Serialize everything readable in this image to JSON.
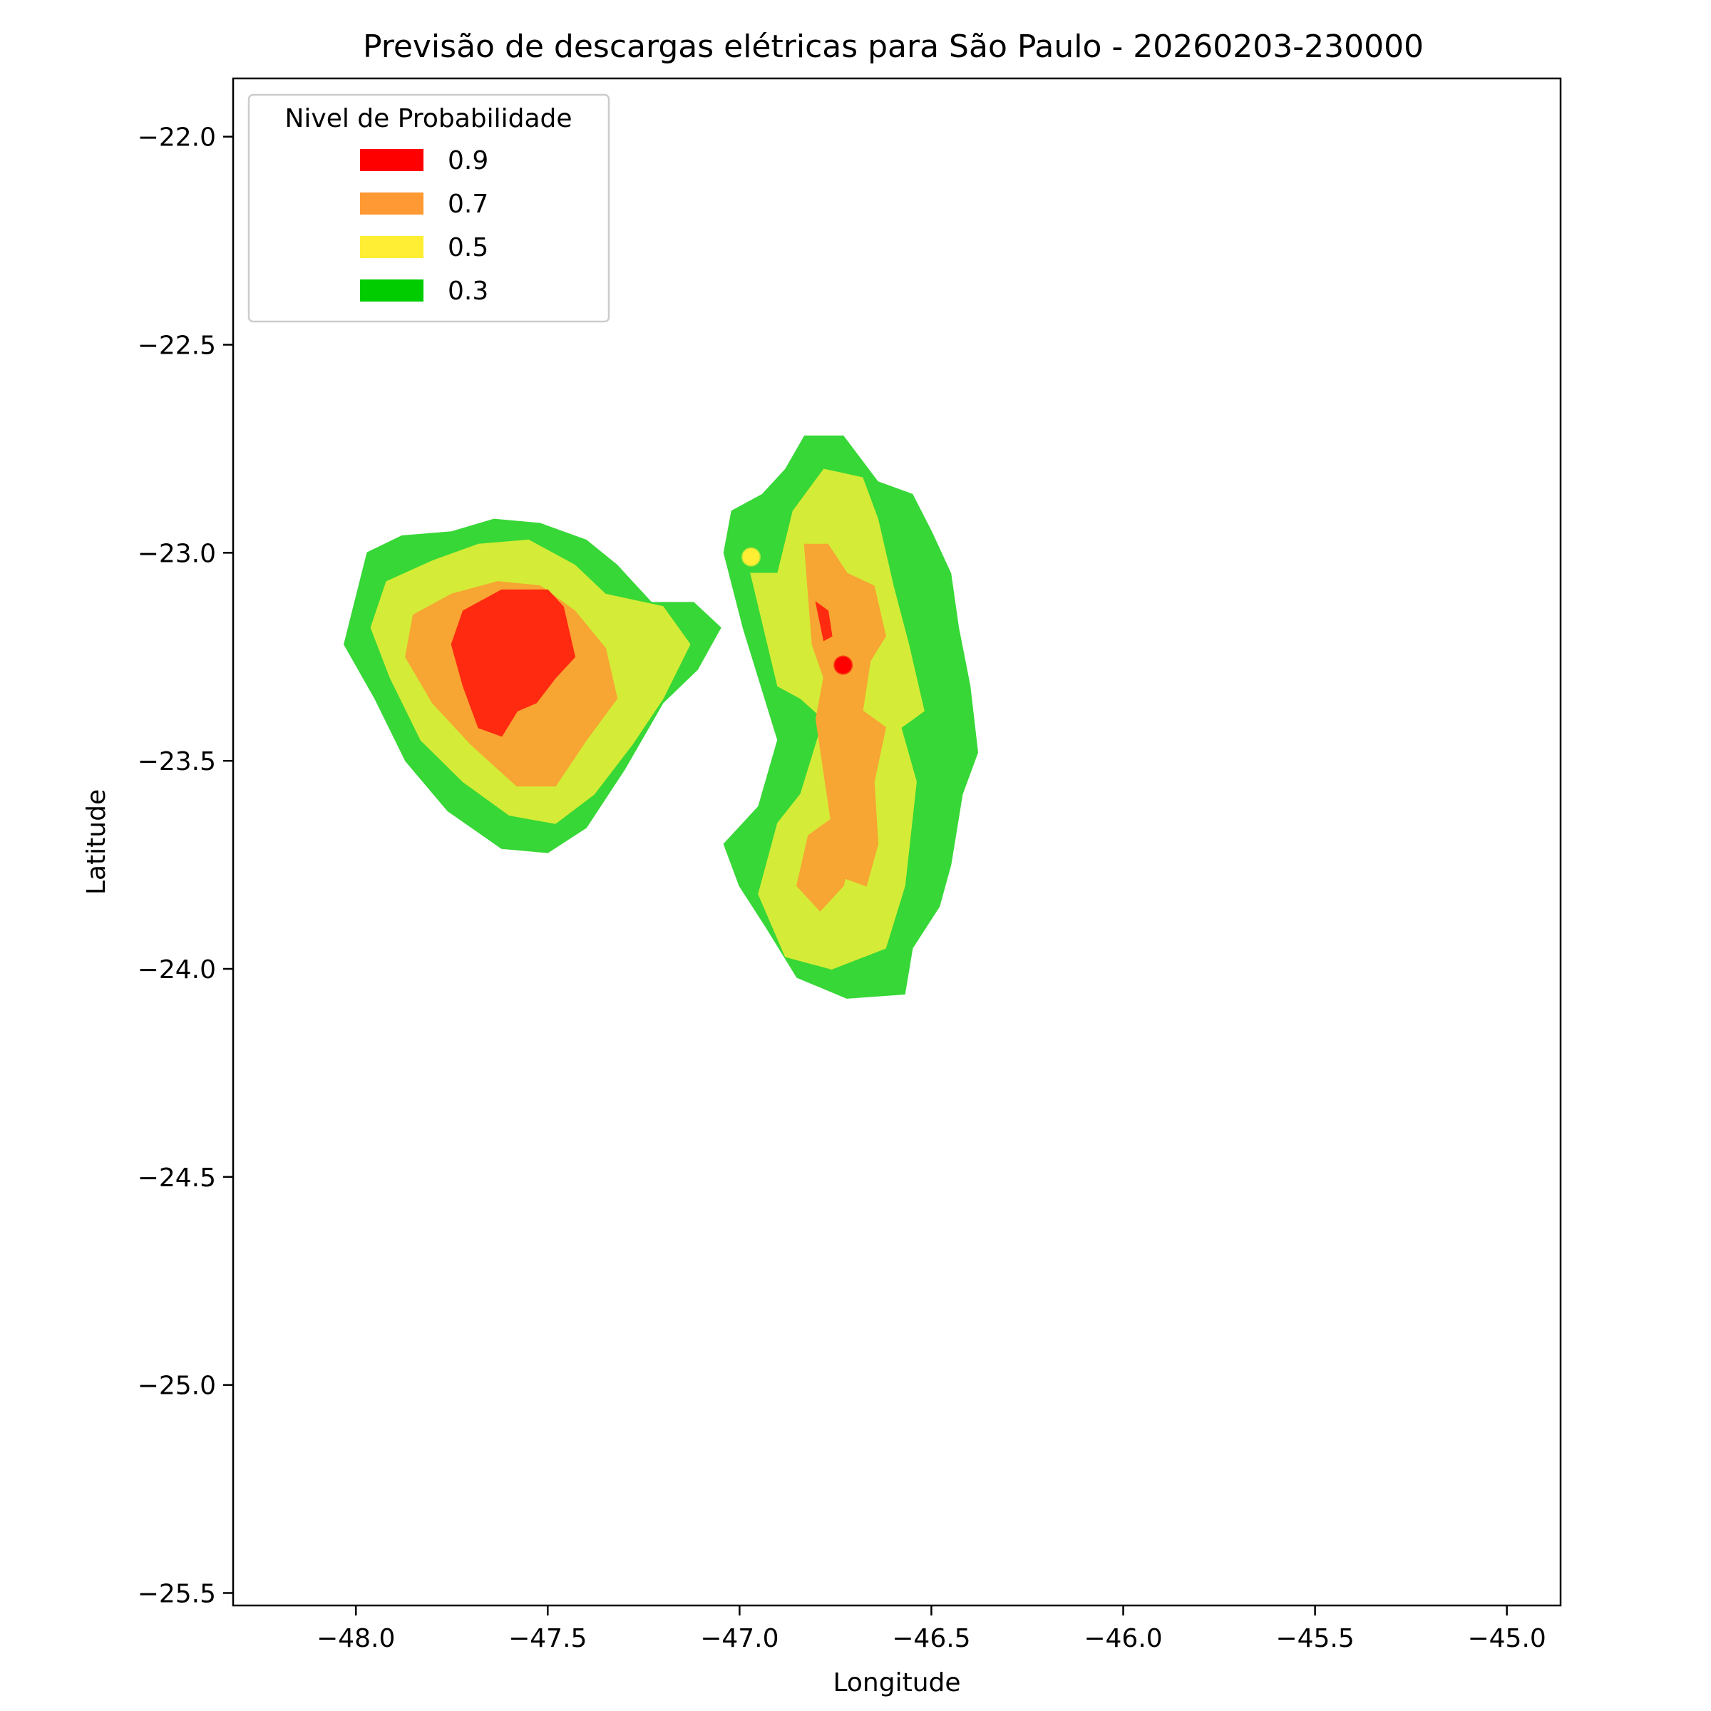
{
  "chart_data": {
    "type": "heatmap",
    "title": "Previsão de descargas elétricas para São Paulo - 20260203-230000",
    "xlabel": "Longitude",
    "ylabel": "Latitude",
    "xlim": [
      -48.32,
      -44.86
    ],
    "ylim": [
      -25.53,
      -21.86
    ],
    "x_ticks": [
      -48.0,
      -47.5,
      -47.0,
      -46.5,
      -46.0,
      -45.5,
      -45.0
    ],
    "y_ticks": [
      -22.0,
      -22.5,
      -23.0,
      -23.5,
      -24.0,
      -24.5,
      -25.0,
      -25.5
    ],
    "x_tick_labels": [
      "−48.0",
      "−47.5",
      "−47.0",
      "−46.5",
      "−46.0",
      "−45.5",
      "−45.0"
    ],
    "y_tick_labels": [
      "−22.0",
      "−22.5",
      "−23.0",
      "−23.5",
      "−24.0",
      "−24.5",
      "−25.0",
      "−25.5"
    ],
    "grid": false,
    "legend": {
      "title": "Nivel de Probabilidade",
      "position": "top-left",
      "entries": [
        {
          "label": "0.9",
          "color": "#ff0000"
        },
        {
          "label": "0.7",
          "color": "#ff9933"
        },
        {
          "label": "0.5",
          "color": "#ffee33"
        },
        {
          "label": "0.3",
          "color": "#00cc00"
        }
      ]
    },
    "levels": [
      {
        "level": 0.3,
        "color": "#37d737",
        "regions": [
          [
            [
              -47.97,
              -23.0
            ],
            [
              -47.88,
              -22.96
            ],
            [
              -47.75,
              -22.95
            ],
            [
              -47.64,
              -22.92
            ],
            [
              -47.52,
              -22.93
            ],
            [
              -47.4,
              -22.97
            ],
            [
              -47.32,
              -23.03
            ],
            [
              -47.23,
              -23.12
            ],
            [
              -47.12,
              -23.12
            ],
            [
              -47.05,
              -23.18
            ],
            [
              -47.11,
              -23.28
            ],
            [
              -47.2,
              -23.36
            ],
            [
              -47.3,
              -23.52
            ],
            [
              -47.4,
              -23.66
            ],
            [
              -47.5,
              -23.72
            ],
            [
              -47.62,
              -23.71
            ],
            [
              -47.76,
              -23.62
            ],
            [
              -47.87,
              -23.5
            ],
            [
              -47.95,
              -23.35
            ],
            [
              -48.03,
              -23.22
            ]
          ],
          [
            [
              -47.02,
              -22.9
            ],
            [
              -46.94,
              -22.86
            ],
            [
              -46.88,
              -22.8
            ],
            [
              -46.83,
              -22.72
            ],
            [
              -46.73,
              -22.72
            ],
            [
              -46.64,
              -22.83
            ],
            [
              -46.55,
              -22.86
            ],
            [
              -46.5,
              -22.95
            ],
            [
              -46.45,
              -23.05
            ],
            [
              -46.43,
              -23.18
            ],
            [
              -46.4,
              -23.32
            ],
            [
              -46.38,
              -23.48
            ],
            [
              -46.42,
              -23.58
            ],
            [
              -46.45,
              -23.75
            ],
            [
              -46.48,
              -23.85
            ],
            [
              -46.55,
              -23.95
            ],
            [
              -46.57,
              -24.06
            ],
            [
              -46.72,
              -24.07
            ],
            [
              -46.85,
              -24.02
            ],
            [
              -46.93,
              -23.9
            ],
            [
              -47.0,
              -23.8
            ],
            [
              -47.04,
              -23.7
            ],
            [
              -46.95,
              -23.61
            ],
            [
              -46.9,
              -23.45
            ],
            [
              -46.95,
              -23.3
            ],
            [
              -46.99,
              -23.18
            ],
            [
              -47.04,
              -23.0
            ]
          ]
        ]
      },
      {
        "level": 0.5,
        "color": "#d4ec37",
        "regions": [
          [
            [
              -47.92,
              -23.07
            ],
            [
              -47.8,
              -23.02
            ],
            [
              -47.68,
              -22.98
            ],
            [
              -47.55,
              -22.97
            ],
            [
              -47.43,
              -23.03
            ],
            [
              -47.35,
              -23.1
            ],
            [
              -47.2,
              -23.13
            ],
            [
              -47.13,
              -23.22
            ],
            [
              -47.2,
              -23.35
            ],
            [
              -47.28,
              -23.46
            ],
            [
              -47.38,
              -23.58
            ],
            [
              -47.48,
              -23.65
            ],
            [
              -47.6,
              -23.63
            ],
            [
              -47.72,
              -23.55
            ],
            [
              -47.83,
              -23.45
            ],
            [
              -47.91,
              -23.3
            ],
            [
              -47.96,
              -23.18
            ]
          ],
          [
            [
              -46.97,
              -23.05
            ],
            [
              -46.9,
              -23.05
            ],
            [
              -46.86,
              -22.9
            ],
            [
              -46.78,
              -22.8
            ],
            [
              -46.68,
              -22.82
            ],
            [
              -46.64,
              -22.92
            ],
            [
              -46.6,
              -23.08
            ],
            [
              -46.56,
              -23.22
            ],
            [
              -46.52,
              -23.38
            ],
            [
              -46.58,
              -23.42
            ],
            [
              -46.54,
              -23.55
            ],
            [
              -46.57,
              -23.8
            ],
            [
              -46.62,
              -23.95
            ],
            [
              -46.76,
              -24.0
            ],
            [
              -46.88,
              -23.97
            ],
            [
              -46.95,
              -23.82
            ],
            [
              -46.9,
              -23.65
            ],
            [
              -46.84,
              -23.58
            ],
            [
              -46.78,
              -23.4
            ],
            [
              -46.84,
              -23.35
            ],
            [
              -46.9,
              -23.32
            ]
          ]
        ]
      },
      {
        "level": 0.7,
        "color": "#f7a533",
        "regions": [
          [
            [
              -47.85,
              -23.15
            ],
            [
              -47.75,
              -23.1
            ],
            [
              -47.63,
              -23.07
            ],
            [
              -47.52,
              -23.08
            ],
            [
              -47.43,
              -23.14
            ],
            [
              -47.35,
              -23.23
            ],
            [
              -47.32,
              -23.35
            ],
            [
              -47.4,
              -23.45
            ],
            [
              -47.48,
              -23.56
            ],
            [
              -47.58,
              -23.56
            ],
            [
              -47.7,
              -23.46
            ],
            [
              -47.8,
              -23.36
            ],
            [
              -47.87,
              -23.25
            ]
          ],
          [
            [
              -46.83,
              -22.98
            ],
            [
              -46.77,
              -22.98
            ],
            [
              -46.72,
              -23.05
            ],
            [
              -46.65,
              -23.08
            ],
            [
              -46.62,
              -23.2
            ],
            [
              -46.66,
              -23.26
            ],
            [
              -46.68,
              -23.38
            ],
            [
              -46.62,
              -23.42
            ],
            [
              -46.65,
              -23.55
            ],
            [
              -46.64,
              -23.7
            ],
            [
              -46.67,
              -23.8
            ],
            [
              -46.73,
              -23.78
            ],
            [
              -46.76,
              -23.65
            ],
            [
              -46.8,
              -23.4
            ],
            [
              -46.78,
              -23.3
            ],
            [
              -46.81,
              -23.22
            ]
          ],
          [
            [
              -46.82,
              -23.68
            ],
            [
              -46.76,
              -23.64
            ],
            [
              -46.71,
              -23.72
            ],
            [
              -46.73,
              -23.8
            ],
            [
              -46.79,
              -23.86
            ],
            [
              -46.85,
              -23.8
            ]
          ]
        ]
      },
      {
        "level": 0.9,
        "color": "#ff2a10",
        "regions": [
          [
            [
              -47.72,
              -23.14
            ],
            [
              -47.62,
              -23.09
            ],
            [
              -47.5,
              -23.09
            ],
            [
              -47.46,
              -23.13
            ],
            [
              -47.43,
              -23.25
            ],
            [
              -47.48,
              -23.3
            ],
            [
              -47.53,
              -23.36
            ],
            [
              -47.58,
              -23.38
            ],
            [
              -47.62,
              -23.44
            ],
            [
              -47.68,
              -23.42
            ],
            [
              -47.72,
              -23.32
            ],
            [
              -47.75,
              -23.22
            ]
          ],
          [
            [
              -46.8,
              -23.12
            ],
            [
              -46.77,
              -23.14
            ],
            [
              -46.76,
              -23.2
            ],
            [
              -46.78,
              -23.21
            ]
          ]
        ]
      }
    ],
    "points": [
      {
        "lon": -46.97,
        "lat": -23.01,
        "color": "#ffee33"
      },
      {
        "lon": -46.73,
        "lat": -23.27,
        "color": "#ff0000"
      }
    ]
  }
}
